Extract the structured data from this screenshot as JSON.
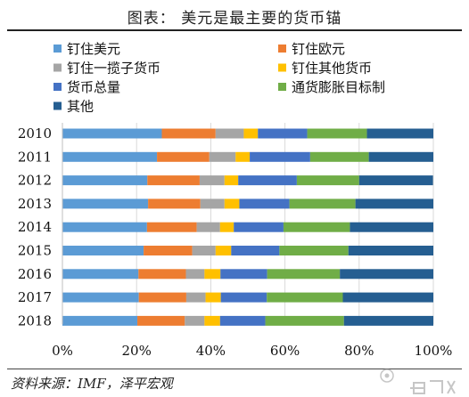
{
  "figure": {
    "title": "图表：  美元是最主要的货币锚",
    "source": "资料来源：IMF，泽平宏观",
    "watermark": "格隆汇"
  },
  "chart_data": {
    "type": "bar",
    "orientation": "horizontal",
    "stacked": true,
    "categories": [
      "2010",
      "2011",
      "2012",
      "2013",
      "2014",
      "2015",
      "2016",
      "2017",
      "2018"
    ],
    "series": [
      {
        "name": "钉住美元",
        "color": "#5b9bd5",
        "values": [
          26.8,
          25.5,
          22.9,
          23.1,
          22.8,
          21.9,
          20.5,
          20.6,
          20.2
        ]
      },
      {
        "name": "钉住欧元",
        "color": "#ed7d31",
        "values": [
          14.5,
          14.1,
          14.1,
          14.1,
          13.4,
          13.1,
          12.8,
          12.8,
          12.8
        ]
      },
      {
        "name": "钉住一揽子货币",
        "color": "#a5a5a5",
        "values": [
          7.6,
          7.1,
          6.7,
          6.5,
          6.3,
          6.3,
          5.0,
          5.2,
          5.3
        ]
      },
      {
        "name": "钉住其他货币",
        "color": "#ffc000",
        "values": [
          3.8,
          3.8,
          3.7,
          4.0,
          3.7,
          4.2,
          4.3,
          4.1,
          4.2
        ]
      },
      {
        "name": "货币总量",
        "color": "#4472c4",
        "values": [
          13.3,
          16.3,
          15.8,
          13.5,
          13.4,
          13.0,
          12.6,
          12.4,
          12.2
        ]
      },
      {
        "name": "通货膨胀目标制",
        "color": "#70ad47",
        "values": [
          16.1,
          15.8,
          16.8,
          17.8,
          17.9,
          18.6,
          19.6,
          20.5,
          21.2
        ]
      },
      {
        "name": "其他",
        "color": "#255e91",
        "values": [
          17.9,
          17.4,
          19.9,
          21.0,
          22.5,
          22.9,
          25.2,
          24.4,
          24.1
        ]
      }
    ],
    "xlim": [
      0,
      100
    ],
    "x_ticks": [
      "0%",
      "20%",
      "40%",
      "60%",
      "80%",
      "100%"
    ],
    "grid": true,
    "legend_position": "top"
  }
}
